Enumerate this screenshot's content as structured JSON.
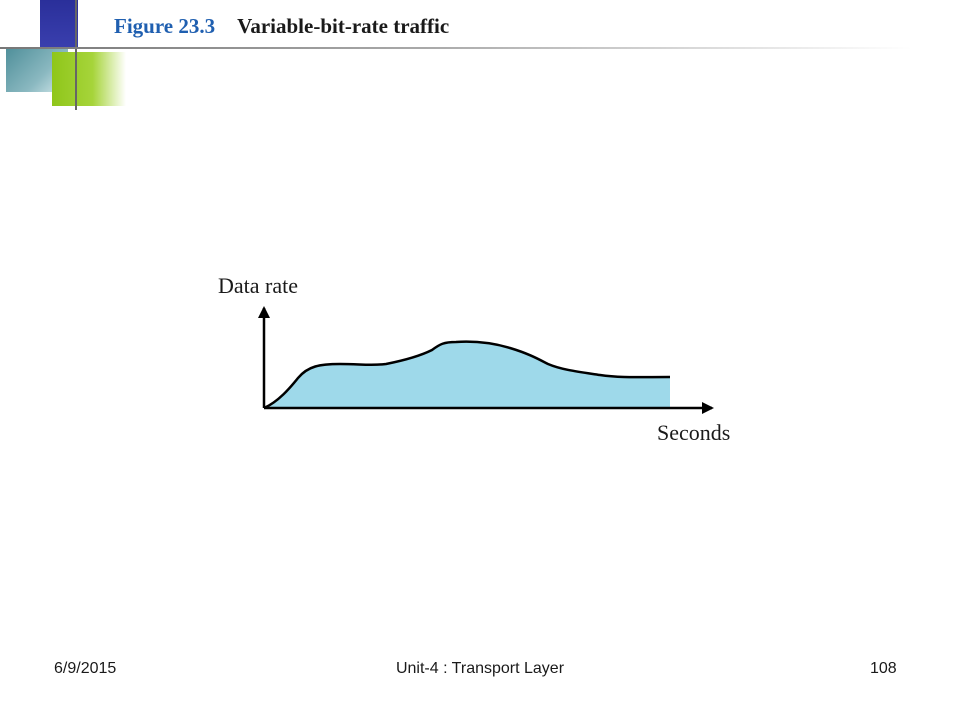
{
  "slide": {
    "figure_number": "Figure 23.3",
    "figure_caption": "Variable-bit-rate traffic"
  },
  "diagram": {
    "y_axis_label": "Data rate",
    "x_axis_label": "Seconds",
    "fill_color": "#9ed9ea",
    "stroke_color": "#000000"
  },
  "footer": {
    "date": "6/9/2015",
    "center": "Unit-4 : Transport Layer",
    "page": "108"
  },
  "colors": {
    "figure_number": "#1f5fb0",
    "accent_blue": "#2a2f9a",
    "accent_green": "#8fc61a"
  }
}
